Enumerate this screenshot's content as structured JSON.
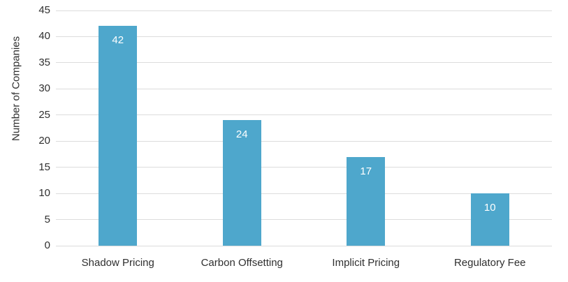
{
  "chart_data": {
    "type": "bar",
    "categories": [
      "Shadow Pricing",
      "Carbon Offsetting",
      "Implicit Pricing",
      "Regulatory Fee"
    ],
    "values": [
      42,
      24,
      17,
      10
    ],
    "ylabel": "Number of Companies",
    "xlabel": "",
    "ylim": [
      0,
      45
    ],
    "yticks": [
      0,
      5,
      10,
      15,
      20,
      25,
      30,
      35,
      40,
      45
    ],
    "grid": true,
    "legend": false,
    "value_labels_inside_bars": true
  },
  "colors": {
    "bar": "#4EA7CC",
    "value_label": "#FFFFFF",
    "gridline": "#DCDCDC",
    "text": "#2F2F2F",
    "background": "#FFFFFF"
  }
}
